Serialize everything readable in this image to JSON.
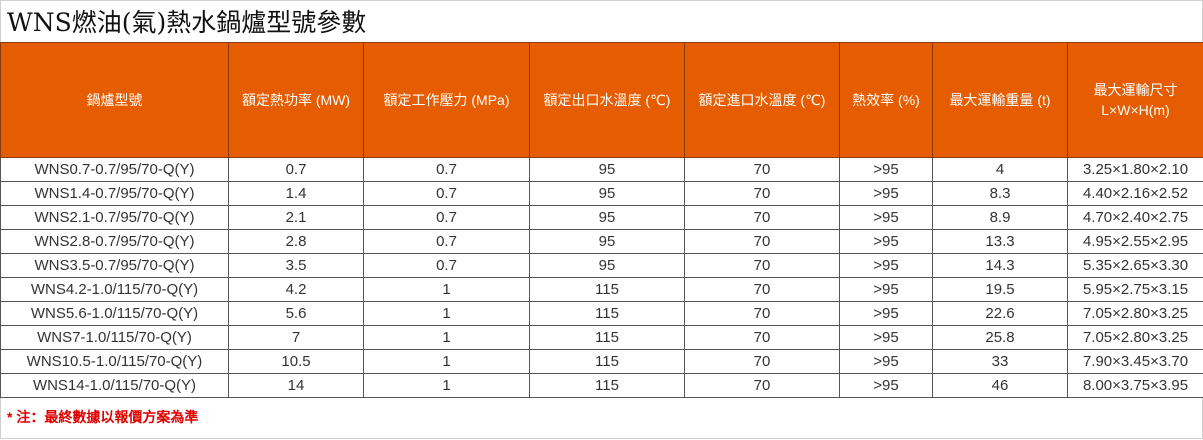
{
  "title": "WNS燃油(氣)熱水鍋爐型號參數",
  "table": {
    "headers": {
      "model": "鍋爐型號",
      "power": "額定熱功率 (MW)",
      "pressure": "額定工作壓力 (MPa)",
      "outlet_temp": "額定出口水溫度 (℃)",
      "inlet_temp": "額定進口水溫度 (℃)",
      "efficiency": "熱效率 (%)",
      "weight": "最大運輸重量 (t)",
      "size_line1": "最大運輸尺寸",
      "size_line2": "L×W×H(m)"
    },
    "rows": [
      {
        "model": "WNS0.7-0.7/95/70-Q(Y)",
        "power": "0.7",
        "pressure": "0.7",
        "outlet": "95",
        "inlet": "70",
        "efficiency": ">95",
        "weight": "4",
        "size": "3.25×1.80×2.10"
      },
      {
        "model": "WNS1.4-0.7/95/70-Q(Y)",
        "power": "1.4",
        "pressure": "0.7",
        "outlet": "95",
        "inlet": "70",
        "efficiency": ">95",
        "weight": "8.3",
        "size": "4.40×2.16×2.52"
      },
      {
        "model": "WNS2.1-0.7/95/70-Q(Y)",
        "power": "2.1",
        "pressure": "0.7",
        "outlet": "95",
        "inlet": "70",
        "efficiency": ">95",
        "weight": "8.9",
        "size": "4.70×2.40×2.75"
      },
      {
        "model": "WNS2.8-0.7/95/70-Q(Y)",
        "power": "2.8",
        "pressure": "0.7",
        "outlet": "95",
        "inlet": "70",
        "efficiency": ">95",
        "weight": "13.3",
        "size": "4.95×2.55×2.95"
      },
      {
        "model": "WNS3.5-0.7/95/70-Q(Y)",
        "power": "3.5",
        "pressure": "0.7",
        "outlet": "95",
        "inlet": "70",
        "efficiency": ">95",
        "weight": "14.3",
        "size": "5.35×2.65×3.30"
      },
      {
        "model": "WNS4.2-1.0/115/70-Q(Y)",
        "power": "4.2",
        "pressure": "1",
        "outlet": "115",
        "inlet": "70",
        "efficiency": ">95",
        "weight": "19.5",
        "size": "5.95×2.75×3.15"
      },
      {
        "model": "WNS5.6-1.0/115/70-Q(Y)",
        "power": "5.6",
        "pressure": "1",
        "outlet": "115",
        "inlet": "70",
        "efficiency": ">95",
        "weight": "22.6",
        "size": "7.05×2.80×3.25"
      },
      {
        "model": "WNS7-1.0/115/70-Q(Y)",
        "power": "7",
        "pressure": "1",
        "outlet": "115",
        "inlet": "70",
        "efficiency": ">95",
        "weight": "25.8",
        "size": "7.05×2.80×3.25"
      },
      {
        "model": "WNS10.5-1.0/115/70-Q(Y)",
        "power": "10.5",
        "pressure": "1",
        "outlet": "115",
        "inlet": "70",
        "efficiency": ">95",
        "weight": "33",
        "size": "7.90×3.45×3.70"
      },
      {
        "model": "WNS14-1.0/115/70-Q(Y)",
        "power": "14",
        "pressure": "1",
        "outlet": "115",
        "inlet": "70",
        "efficiency": ">95",
        "weight": "46",
        "size": "8.00×3.75×3.95"
      }
    ]
  },
  "note": "* 注：最終數據以報價方案為準",
  "colors": {
    "header_bg": "#e65c00",
    "header_text": "#ffffff",
    "note_text": "#e00000"
  }
}
